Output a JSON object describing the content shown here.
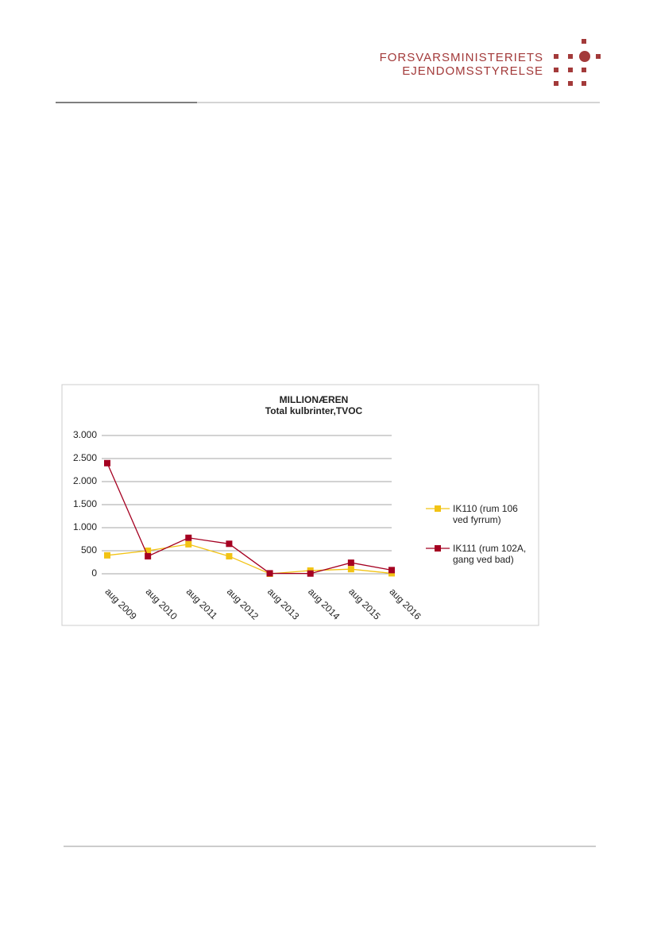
{
  "header": {
    "line1": "FORSVARSMINISTERIETS",
    "line2": "EJENDOMSSTYRELSE"
  },
  "chart_data": {
    "type": "line",
    "title": "MILLIONÆREN",
    "subtitle": "Total kulbrinter,TVOC",
    "categories": [
      "aug 2009",
      "aug 2010",
      "aug 2011",
      "aug 2012",
      "aug 2013",
      "aug 2014",
      "aug 2015",
      "aug 2016"
    ],
    "series": [
      {
        "name": "IK110 (rum 106 ved fyrrum)",
        "color": "#f2c314",
        "values": [
          400,
          500,
          640,
          380,
          0,
          70,
          100,
          10
        ]
      },
      {
        "name": "IK111 (rum 102A, gang ved bad)",
        "color": "#a50021",
        "values": [
          2400,
          380,
          780,
          650,
          10,
          5,
          240,
          80
        ]
      }
    ],
    "ylim": [
      0,
      3000
    ],
    "yticks": [
      0,
      500,
      {
        "value": 1000,
        "label": "1.000"
      },
      {
        "value": 1500,
        "label": "1.500"
      },
      {
        "value": 2000,
        "label": "2.000"
      },
      {
        "value": 2500,
        "label": "2.500"
      },
      {
        "value": 3000,
        "label": "3.000"
      }
    ],
    "grid": true,
    "legend": "right"
  }
}
